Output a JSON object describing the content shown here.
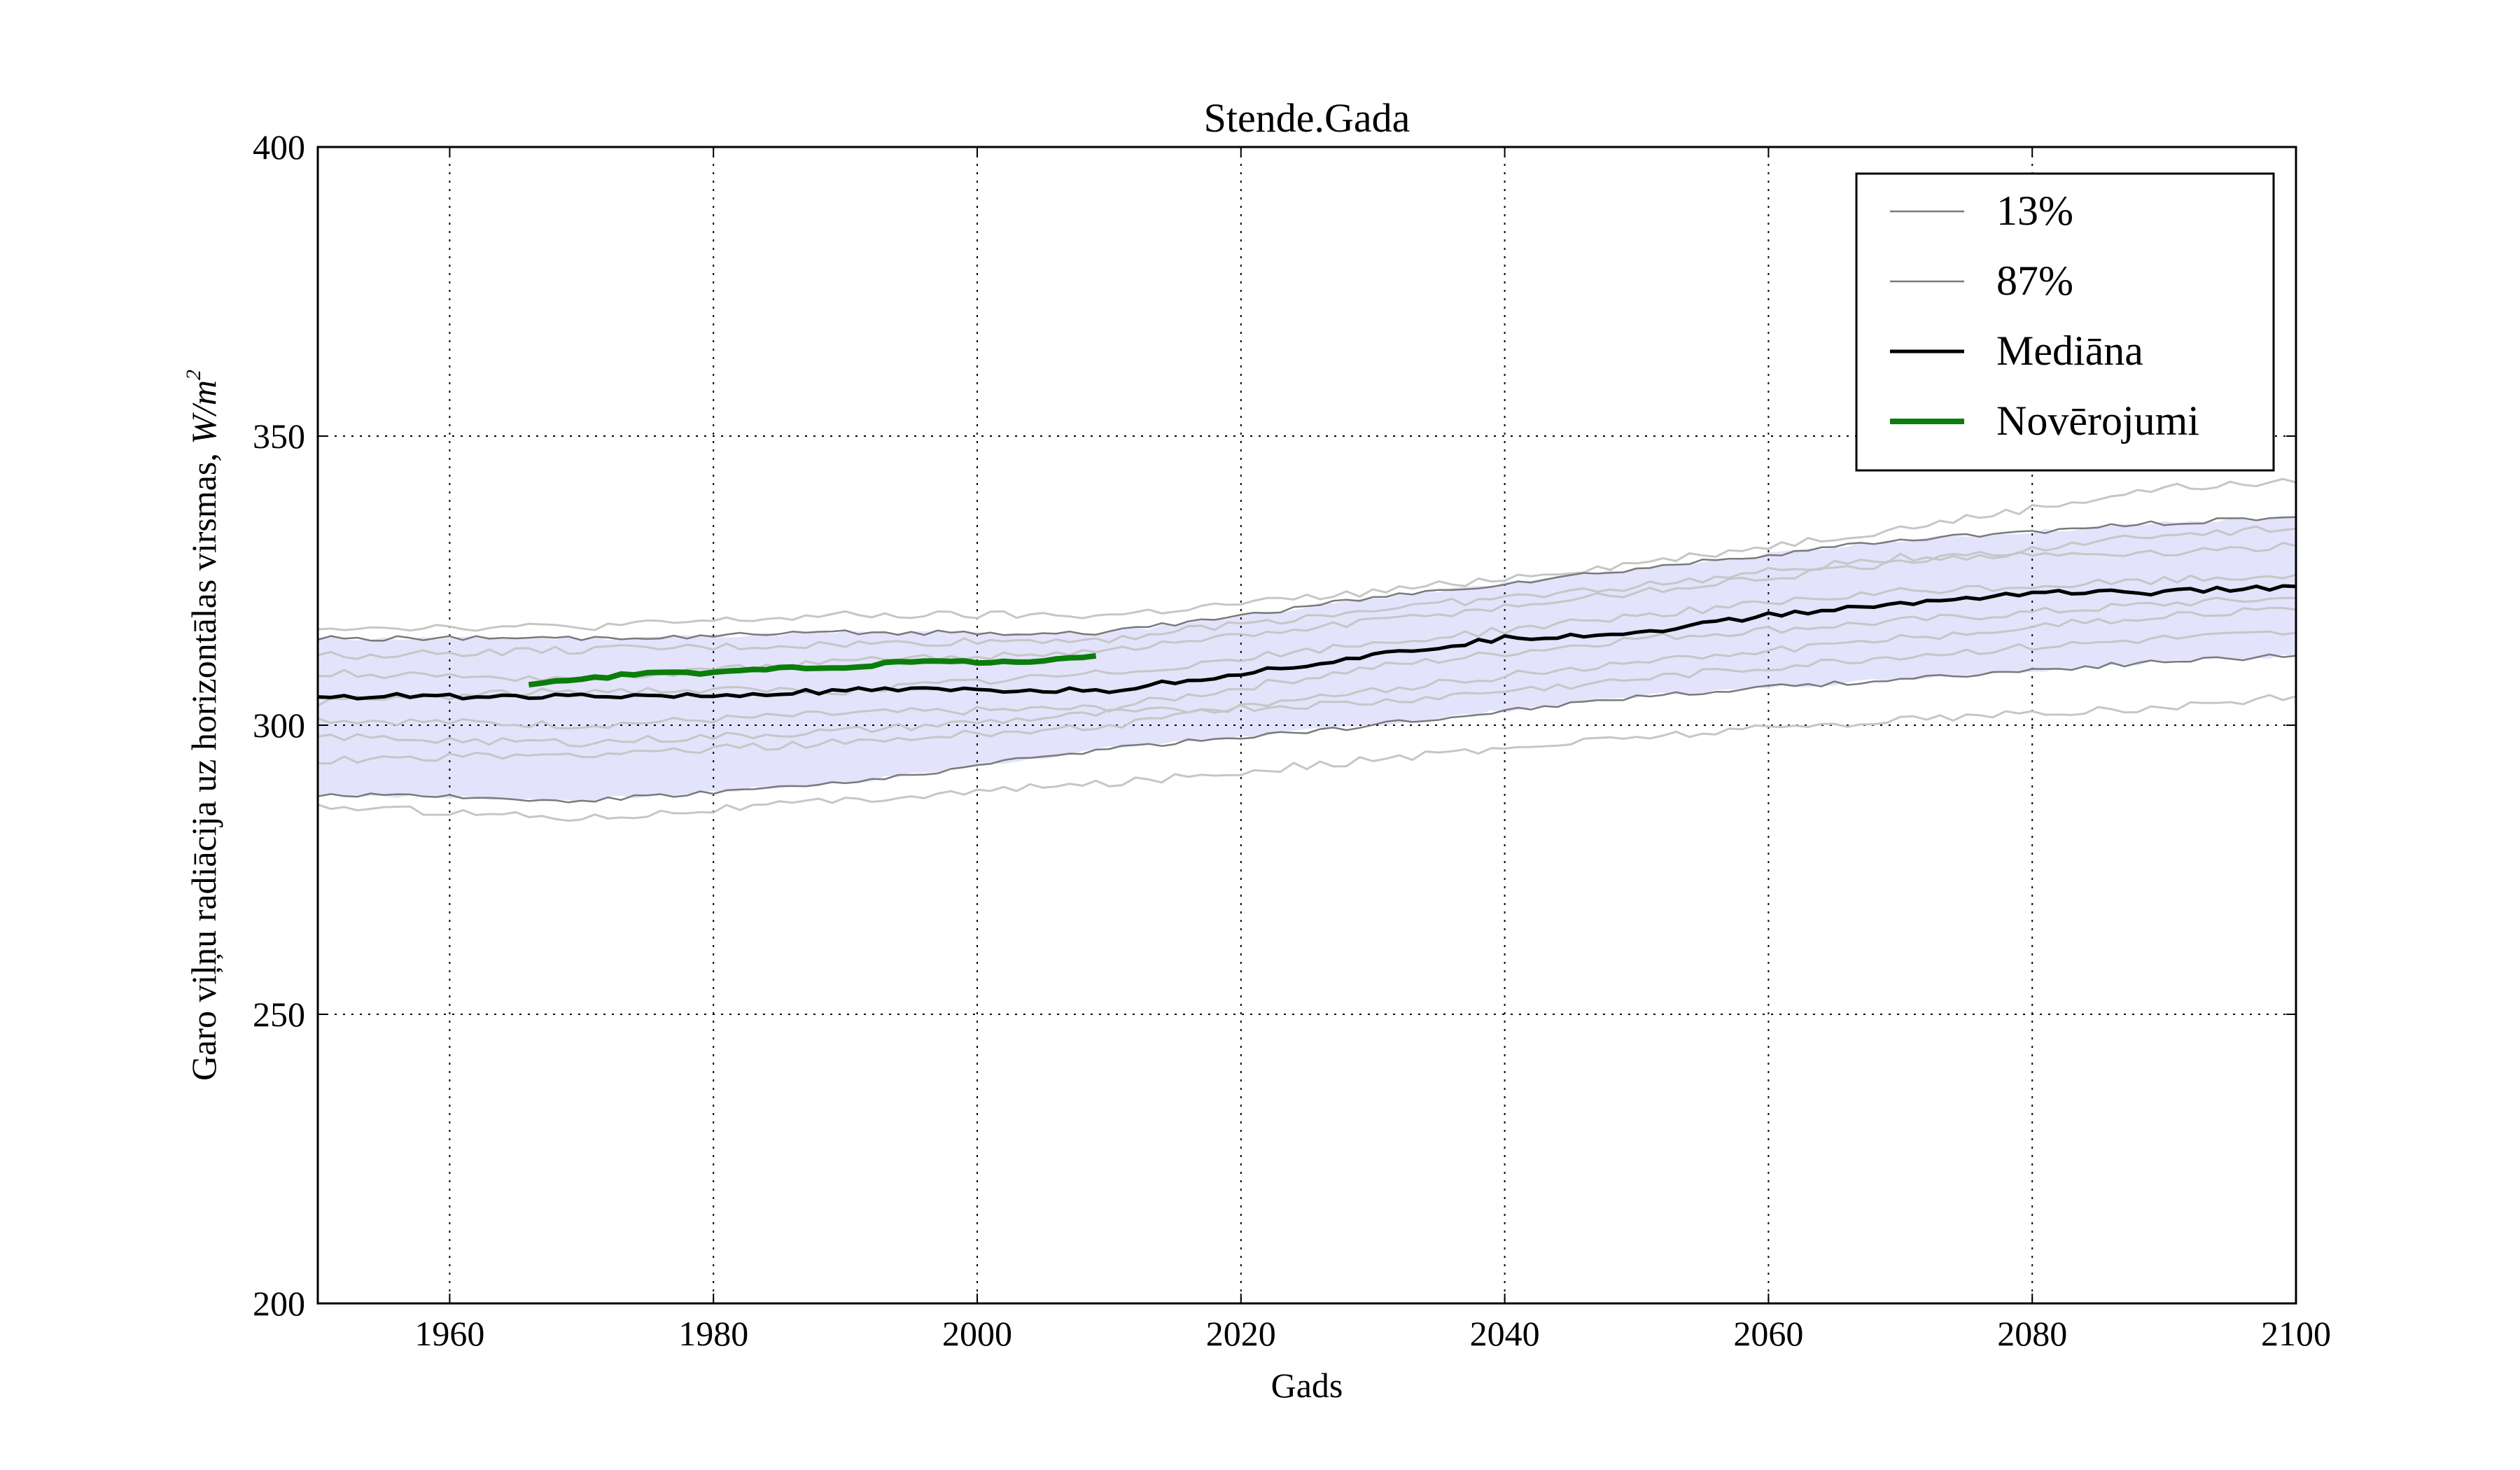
{
  "chart_data": {
    "type": "line",
    "title": "Stende.Gada",
    "xlabel": "Gads",
    "ylabel": "Garo viļņu radiācija uz horizontālas virsmas, W/m²",
    "ylabel_text": "Garo viļņu radiācija uz horizontālas virsmas, ",
    "ylabel_unit": "W/m",
    "ylabel_exp": "2",
    "xlim": [
      1950,
      2100
    ],
    "ylim": [
      200,
      400
    ],
    "xticks": [
      1960,
      1980,
      2000,
      2020,
      2040,
      2060,
      2080,
      2100
    ],
    "yticks": [
      200,
      250,
      300,
      350,
      400
    ],
    "grid": true,
    "legend_position": "top-right",
    "band": {
      "fill": "#e3e3fb",
      "x": [
        1950,
        1970,
        1990,
        2010,
        2030,
        2050,
        2070,
        2090,
        2100
      ],
      "lower": [
        288,
        287,
        290,
        296,
        300,
        305,
        308,
        311,
        312
      ],
      "upper": [
        315,
        315,
        316,
        316,
        322,
        327,
        332,
        335,
        336
      ]
    },
    "series": [
      {
        "name": "13%",
        "color": "#7a7a7a",
        "width": 2.5,
        "x": [
          1950,
          1970,
          1990,
          2010,
          2030,
          2050,
          2070,
          2090,
          2100
        ],
        "y": [
          288,
          287,
          290,
          296,
          300,
          305,
          308,
          311,
          312
        ]
      },
      {
        "name": "87%",
        "color": "#7a7a7a",
        "width": 2.5,
        "x": [
          1950,
          1970,
          1990,
          2010,
          2030,
          2050,
          2070,
          2090,
          2100
        ],
        "y": [
          315,
          315,
          316,
          316,
          322,
          327,
          332,
          335,
          336
        ]
      },
      {
        "name": "Mediāna",
        "color": "#000000",
        "width": 5,
        "x": [
          1950,
          1960,
          1970,
          1980,
          1990,
          2000,
          2010,
          2020,
          2030,
          2040,
          2050,
          2060,
          2070,
          2080,
          2090,
          2100
        ],
        "y": [
          305,
          305,
          305,
          305,
          306,
          306,
          306,
          309,
          312,
          315,
          316,
          319,
          321,
          323,
          323,
          324
        ]
      },
      {
        "name": "Novērojumi",
        "color": "#0b7d0b",
        "width": 8,
        "x": [
          1966,
          1970,
          1975,
          1980,
          1985,
          1990,
          1995,
          2000,
          2005,
          2009
        ],
        "y": [
          307,
          308,
          309,
          309,
          310,
          310,
          311,
          311,
          311,
          312
        ]
      }
    ],
    "ensemble": {
      "color": "#c6c6c6",
      "members": [
        {
          "x": [
            1950,
            1970,
            1990,
            2010,
            2030,
            2050,
            2070,
            2090,
            2100
          ],
          "y": [
            317,
            317,
            319,
            319,
            323,
            328,
            334,
            341,
            342
          ]
        },
        {
          "x": [
            1950,
            1970,
            1990,
            2010,
            2030,
            2050,
            2070,
            2090,
            2100
          ],
          "y": [
            286,
            284,
            287,
            290,
            294,
            298,
            301,
            303,
            305
          ]
        },
        {
          "x": [
            1950,
            1970,
            1990,
            2010,
            2030,
            2050,
            2070,
            2090,
            2100
          ],
          "y": [
            309,
            308,
            311,
            313,
            318,
            323,
            328,
            333,
            334
          ]
        },
        {
          "x": [
            1950,
            1970,
            1990,
            2010,
            2030,
            2050,
            2070,
            2090,
            2100
          ],
          "y": [
            301,
            300,
            302,
            303,
            310,
            315,
            318,
            321,
            322
          ]
        },
        {
          "x": [
            1950,
            1970,
            1990,
            2010,
            2030,
            2050,
            2070,
            2090,
            2100
          ],
          "y": [
            294,
            295,
            297,
            300,
            306,
            311,
            315,
            319,
            320
          ]
        },
        {
          "x": [
            1950,
            1970,
            1990,
            2010,
            2030,
            2050,
            2070,
            2090,
            2100
          ],
          "y": [
            312,
            313,
            314,
            315,
            320,
            324,
            329,
            330,
            331
          ]
        },
        {
          "x": [
            1950,
            1970,
            1990,
            2010,
            2030,
            2050,
            2070,
            2090,
            2100
          ],
          "y": [
            304,
            306,
            306,
            309,
            314,
            319,
            323,
            325,
            326
          ]
        },
        {
          "x": [
            1950,
            1970,
            1990,
            2010,
            2030,
            2050,
            2070,
            2090,
            2100
          ],
          "y": [
            298,
            297,
            299,
            302,
            304,
            308,
            312,
            315,
            316
          ]
        }
      ]
    }
  }
}
